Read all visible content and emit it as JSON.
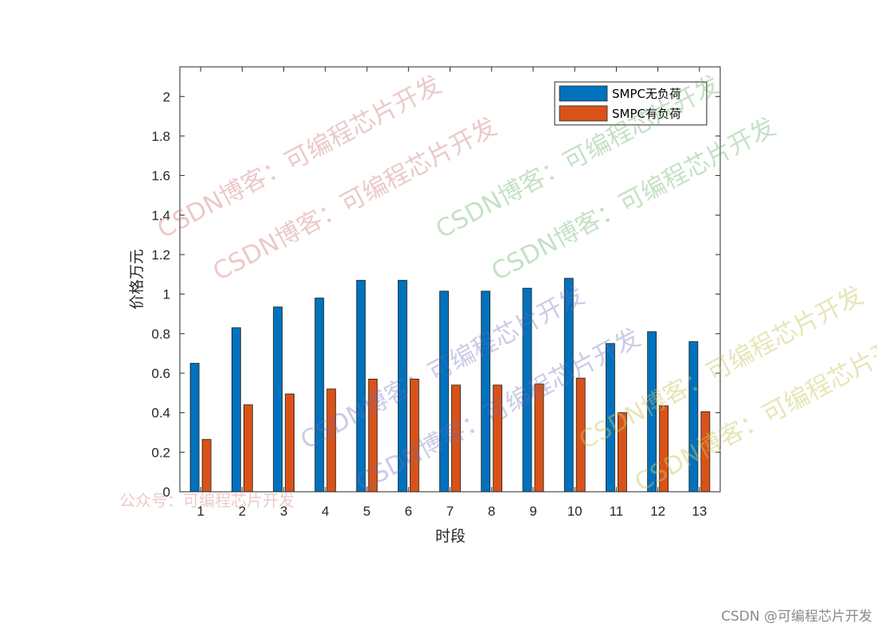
{
  "chart_data": {
    "type": "bar",
    "categories": [
      "1",
      "2",
      "3",
      "4",
      "5",
      "6",
      "7",
      "8",
      "9",
      "10",
      "11",
      "12",
      "13"
    ],
    "series": [
      {
        "name": "SMPC无负荷",
        "color": "#0072BD",
        "values": [
          0.65,
          0.83,
          0.935,
          0.98,
          1.07,
          1.07,
          1.015,
          1.015,
          1.03,
          1.08,
          0.75,
          0.81,
          0.76
        ]
      },
      {
        "name": "SMPC有负荷",
        "color": "#D95319",
        "values": [
          0.265,
          0.44,
          0.495,
          0.52,
          0.57,
          0.57,
          0.54,
          0.54,
          0.545,
          0.575,
          0.4,
          0.435,
          0.405
        ]
      }
    ],
    "xlabel": "时段",
    "ylabel": "价格万元",
    "ylim": [
      0,
      2.15
    ],
    "yticks": [
      "0",
      "0.2",
      "0.4",
      "0.6",
      "0.8",
      "1",
      "1.2",
      "1.4",
      "1.6",
      "1.8",
      "2"
    ],
    "legend_position": "top-right",
    "grid": false
  },
  "watermarks": {
    "pink_1": "CSDN博客：可编程芯片开发",
    "pink_2": "CSDN博客：可编程芯片开发",
    "green_1": "CSDN博客：可编程芯片开发",
    "green_2": "CSDN博客：可编程芯片开发",
    "blue_1": "CSDN博客：可编程芯片开发",
    "blue_2": "CSDN博客：可编程芯片开发",
    "yellow_1": "CSDN博客：可编程芯片开发",
    "yellow_2": "CSDN博客：可编程芯片开发",
    "public": "公众号：可编程芯片开发"
  },
  "footer": "CSDN @可编程芯片开发"
}
